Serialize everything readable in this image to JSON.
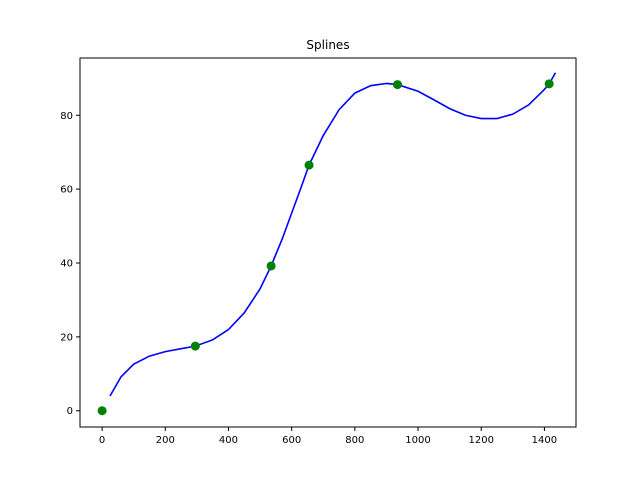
{
  "chart_data": {
    "type": "line",
    "title": "Splines",
    "xlabel": "",
    "ylabel": "",
    "xlim": [
      -70,
      1500
    ],
    "ylim": [
      -4.4,
      95.5
    ],
    "xticks": [
      0,
      200,
      400,
      600,
      800,
      1000,
      1200,
      1400
    ],
    "yticks": [
      0,
      20,
      40,
      60,
      80
    ],
    "grid": false,
    "legend": "none",
    "series": [
      {
        "kind": "points",
        "color": "#008000",
        "points": [
          {
            "x": 0,
            "y": 0
          },
          {
            "x": 295,
            "y": 17.5
          },
          {
            "x": 535,
            "y": 39.2
          },
          {
            "x": 655,
            "y": 66.5
          },
          {
            "x": 935,
            "y": 88.3
          },
          {
            "x": 1415,
            "y": 88.5
          }
        ]
      },
      {
        "kind": "line",
        "color": "#0000ff",
        "points": [
          {
            "x": 25,
            "y": 4.0
          },
          {
            "x": 60,
            "y": 9.2
          },
          {
            "x": 100,
            "y": 12.6
          },
          {
            "x": 150,
            "y": 14.8
          },
          {
            "x": 200,
            "y": 16.0
          },
          {
            "x": 250,
            "y": 16.8
          },
          {
            "x": 295,
            "y": 17.5
          },
          {
            "x": 350,
            "y": 19.2
          },
          {
            "x": 400,
            "y": 22.0
          },
          {
            "x": 450,
            "y": 26.5
          },
          {
            "x": 500,
            "y": 33.0
          },
          {
            "x": 535,
            "y": 39.2
          },
          {
            "x": 570,
            "y": 46.5
          },
          {
            "x": 600,
            "y": 53.5
          },
          {
            "x": 630,
            "y": 60.5
          },
          {
            "x": 655,
            "y": 66.5
          },
          {
            "x": 700,
            "y": 74.5
          },
          {
            "x": 750,
            "y": 81.5
          },
          {
            "x": 800,
            "y": 86.0
          },
          {
            "x": 850,
            "y": 88.0
          },
          {
            "x": 900,
            "y": 88.6
          },
          {
            "x": 935,
            "y": 88.3
          },
          {
            "x": 1000,
            "y": 86.5
          },
          {
            "x": 1050,
            "y": 84.2
          },
          {
            "x": 1100,
            "y": 81.8
          },
          {
            "x": 1150,
            "y": 80.0
          },
          {
            "x": 1200,
            "y": 79.1
          },
          {
            "x": 1250,
            "y": 79.1
          },
          {
            "x": 1300,
            "y": 80.3
          },
          {
            "x": 1350,
            "y": 82.8
          },
          {
            "x": 1400,
            "y": 87.0
          },
          {
            "x": 1415,
            "y": 88.5
          },
          {
            "x": 1435,
            "y": 91.5
          }
        ]
      }
    ]
  }
}
